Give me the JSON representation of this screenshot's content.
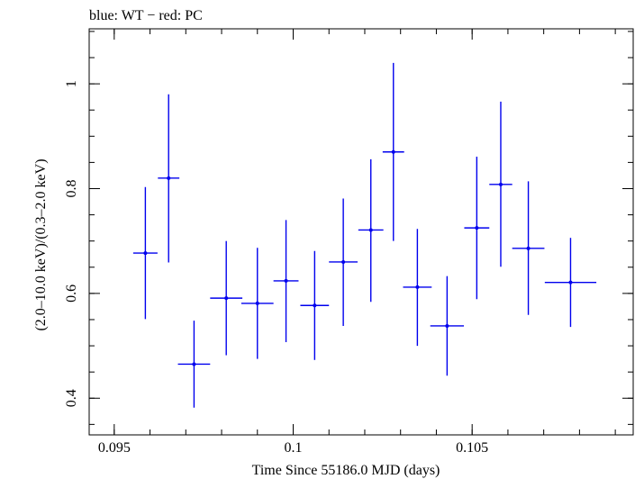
{
  "chart_data": {
    "type": "scatter",
    "title": "blue: WT − red: PC",
    "xlabel": "Time Since 55186.0 MJD (days)",
    "ylabel": "(2.0–10.0 keV)/(0.3–2.0 keV)",
    "xlim": [
      0.0943,
      0.1095
    ],
    "ylim": [
      0.33,
      1.105
    ],
    "xticks": [
      {
        "value": 0.095,
        "label": "0.095"
      },
      {
        "value": 0.1,
        "label": "0.1"
      },
      {
        "value": 0.105,
        "label": "0.105"
      }
    ],
    "yticks": [
      {
        "value": 0.4,
        "label": "0.4"
      },
      {
        "value": 0.6,
        "label": "0.6"
      },
      {
        "value": 0.8,
        "label": "0.8"
      },
      {
        "value": 1.0,
        "label": "1"
      }
    ],
    "x_minor_step": 0.001,
    "y_minor_step": 0.05,
    "grid": false,
    "series": [
      {
        "color": "#0000ee",
        "points": [
          {
            "x": 0.09587,
            "xerr": 0.00034,
            "y": 0.677,
            "ylo": 0.551,
            "yhi": 0.803
          },
          {
            "x": 0.09652,
            "xerr": 0.0003,
            "y": 0.82,
            "ylo": 0.659,
            "yhi": 0.98
          },
          {
            "x": 0.09723,
            "xerr": 0.00045,
            "y": 0.465,
            "ylo": 0.382,
            "yhi": 0.548
          },
          {
            "x": 0.09813,
            "xerr": 0.00045,
            "y": 0.591,
            "ylo": 0.482,
            "yhi": 0.7
          },
          {
            "x": 0.099,
            "xerr": 0.00045,
            "y": 0.581,
            "ylo": 0.475,
            "yhi": 0.687
          },
          {
            "x": 0.0998,
            "xerr": 0.00035,
            "y": 0.624,
            "ylo": 0.507,
            "yhi": 0.74
          },
          {
            "x": 0.1006,
            "xerr": 0.0004,
            "y": 0.577,
            "ylo": 0.473,
            "yhi": 0.681
          },
          {
            "x": 0.1014,
            "xerr": 0.0004,
            "y": 0.66,
            "ylo": 0.538,
            "yhi": 0.781
          },
          {
            "x": 0.10217,
            "xerr": 0.00035,
            "y": 0.721,
            "ylo": 0.584,
            "yhi": 0.856
          },
          {
            "x": 0.1028,
            "xerr": 0.0003,
            "y": 0.87,
            "ylo": 0.7,
            "yhi": 1.04
          },
          {
            "x": 0.10347,
            "xerr": 0.0004,
            "y": 0.612,
            "ylo": 0.5,
            "yhi": 0.723
          },
          {
            "x": 0.1043,
            "xerr": 0.00047,
            "y": 0.538,
            "ylo": 0.443,
            "yhi": 0.633
          },
          {
            "x": 0.10513,
            "xerr": 0.00035,
            "y": 0.725,
            "ylo": 0.589,
            "yhi": 0.861
          },
          {
            "x": 0.1058,
            "xerr": 0.00032,
            "y": 0.808,
            "ylo": 0.651,
            "yhi": 0.966
          },
          {
            "x": 0.10657,
            "xerr": 0.00045,
            "y": 0.686,
            "ylo": 0.559,
            "yhi": 0.814
          },
          {
            "x": 0.10775,
            "xerr": 0.00072,
            "y": 0.621,
            "ylo": 0.536,
            "yhi": 0.706
          }
        ]
      }
    ]
  }
}
